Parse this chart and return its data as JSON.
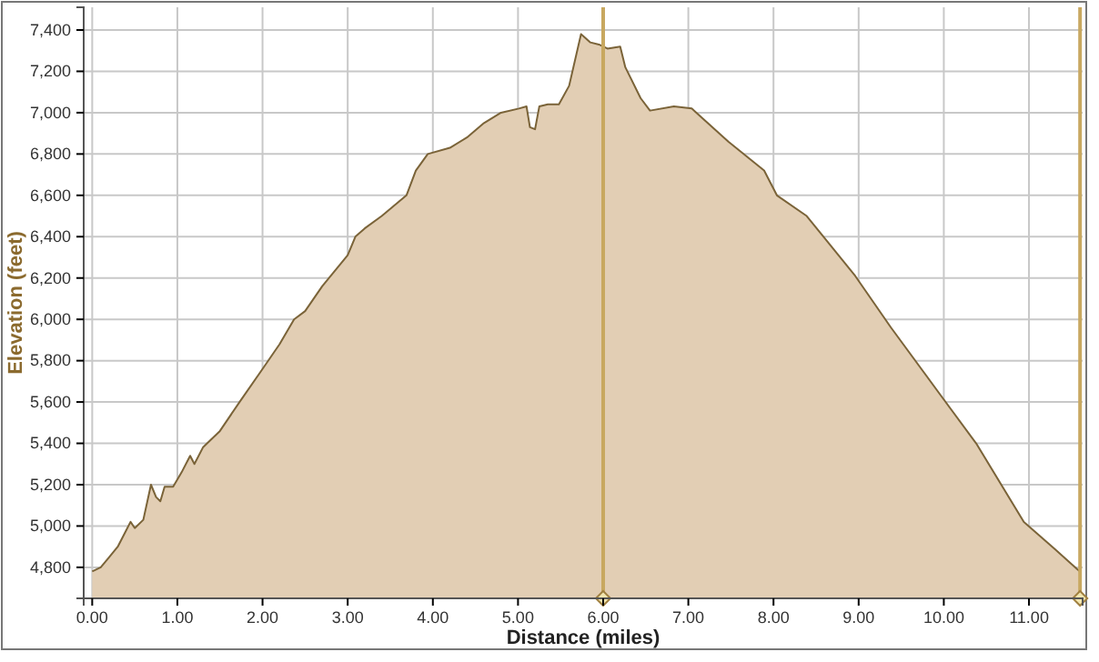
{
  "chart_data": {
    "type": "area",
    "xlabel": "Distance (miles)",
    "ylabel": "Elevation (feet)",
    "x": [
      0,
      0.1,
      0.2,
      0.3,
      0.4,
      0.45,
      0.5,
      0.6,
      0.69,
      0.75,
      0.8,
      0.85,
      0.95,
      1.05,
      1.15,
      1.2,
      1.3,
      1.5,
      1.73,
      2.0,
      2.2,
      2.37,
      2.5,
      2.7,
      3.0,
      3.09,
      3.2,
      3.4,
      3.69,
      3.8,
      3.94,
      4.2,
      4.4,
      4.6,
      4.8,
      5.01,
      5.1,
      5.14,
      5.2,
      5.25,
      5.35,
      5.48,
      5.6,
      5.74,
      5.85,
      5.95,
      6.05,
      6.2,
      6.26,
      6.44,
      6.55,
      6.83,
      7.04,
      7.47,
      7.89,
      8.04,
      8.39,
      8.96,
      9.38,
      9.95,
      10.38,
      10.94,
      11.3,
      11.57,
      11.6
    ],
    "series": [
      {
        "color": "#7a6338",
        "values": [
          4780,
          4800,
          4850,
          4900,
          4980,
          5020,
          4990,
          5030,
          5200,
          5140,
          5120,
          5190,
          5190,
          5260,
          5340,
          5300,
          5380,
          5460,
          5600,
          5760,
          5880,
          6000,
          6040,
          6160,
          6310,
          6400,
          6440,
          6500,
          6600,
          6720,
          6800,
          6830,
          6880,
          6950,
          7000,
          7020,
          7030,
          6930,
          6920,
          7030,
          7040,
          7040,
          7130,
          7380,
          7340,
          7330,
          7310,
          7320,
          7220,
          7070,
          7010,
          7030,
          7020,
          6860,
          6720,
          6600,
          6500,
          6210,
          5960,
          5640,
          5400,
          5020,
          4890,
          4790,
          4780
        ]
      }
    ],
    "xlim": [
      -0.1,
      11.63
    ],
    "ylim": [
      4650,
      7510
    ],
    "xticks": [
      {
        "value": 0,
        "label": "0.00"
      },
      {
        "value": 1,
        "label": "1.00"
      },
      {
        "value": 2,
        "label": "2.00"
      },
      {
        "value": 3,
        "label": "3.00"
      },
      {
        "value": 4,
        "label": "4.00"
      },
      {
        "value": 5,
        "label": "5.00"
      },
      {
        "value": 6,
        "label": "6.00"
      },
      {
        "value": 7,
        "label": "7.00"
      },
      {
        "value": 8,
        "label": "8.00"
      },
      {
        "value": 9,
        "label": "9.00"
      },
      {
        "value": 10,
        "label": "10.00"
      },
      {
        "value": 11,
        "label": "11.00"
      }
    ],
    "yticks": [
      {
        "value": 4800,
        "label": "4,800"
      },
      {
        "value": 5000,
        "label": "5,000"
      },
      {
        "value": 5200,
        "label": "5,200"
      },
      {
        "value": 5400,
        "label": "5,400"
      },
      {
        "value": 5600,
        "label": "5,600"
      },
      {
        "value": 5800,
        "label": "5,800"
      },
      {
        "value": 6000,
        "label": "6,000"
      },
      {
        "value": 6200,
        "label": "6,200"
      },
      {
        "value": 6400,
        "label": "6,400"
      },
      {
        "value": 6600,
        "label": "6,600"
      },
      {
        "value": 6800,
        "label": "6,800"
      },
      {
        "value": 7000,
        "label": "7,000"
      },
      {
        "value": 7200,
        "label": "7,200"
      },
      {
        "value": 7400,
        "label": "7,400"
      }
    ],
    "grid": true,
    "ref_lines": [
      {
        "axis": "x",
        "value": 6.0,
        "color": "#c8a860"
      },
      {
        "axis": "x",
        "value": 11.6,
        "color": "#c8a860"
      }
    ]
  }
}
